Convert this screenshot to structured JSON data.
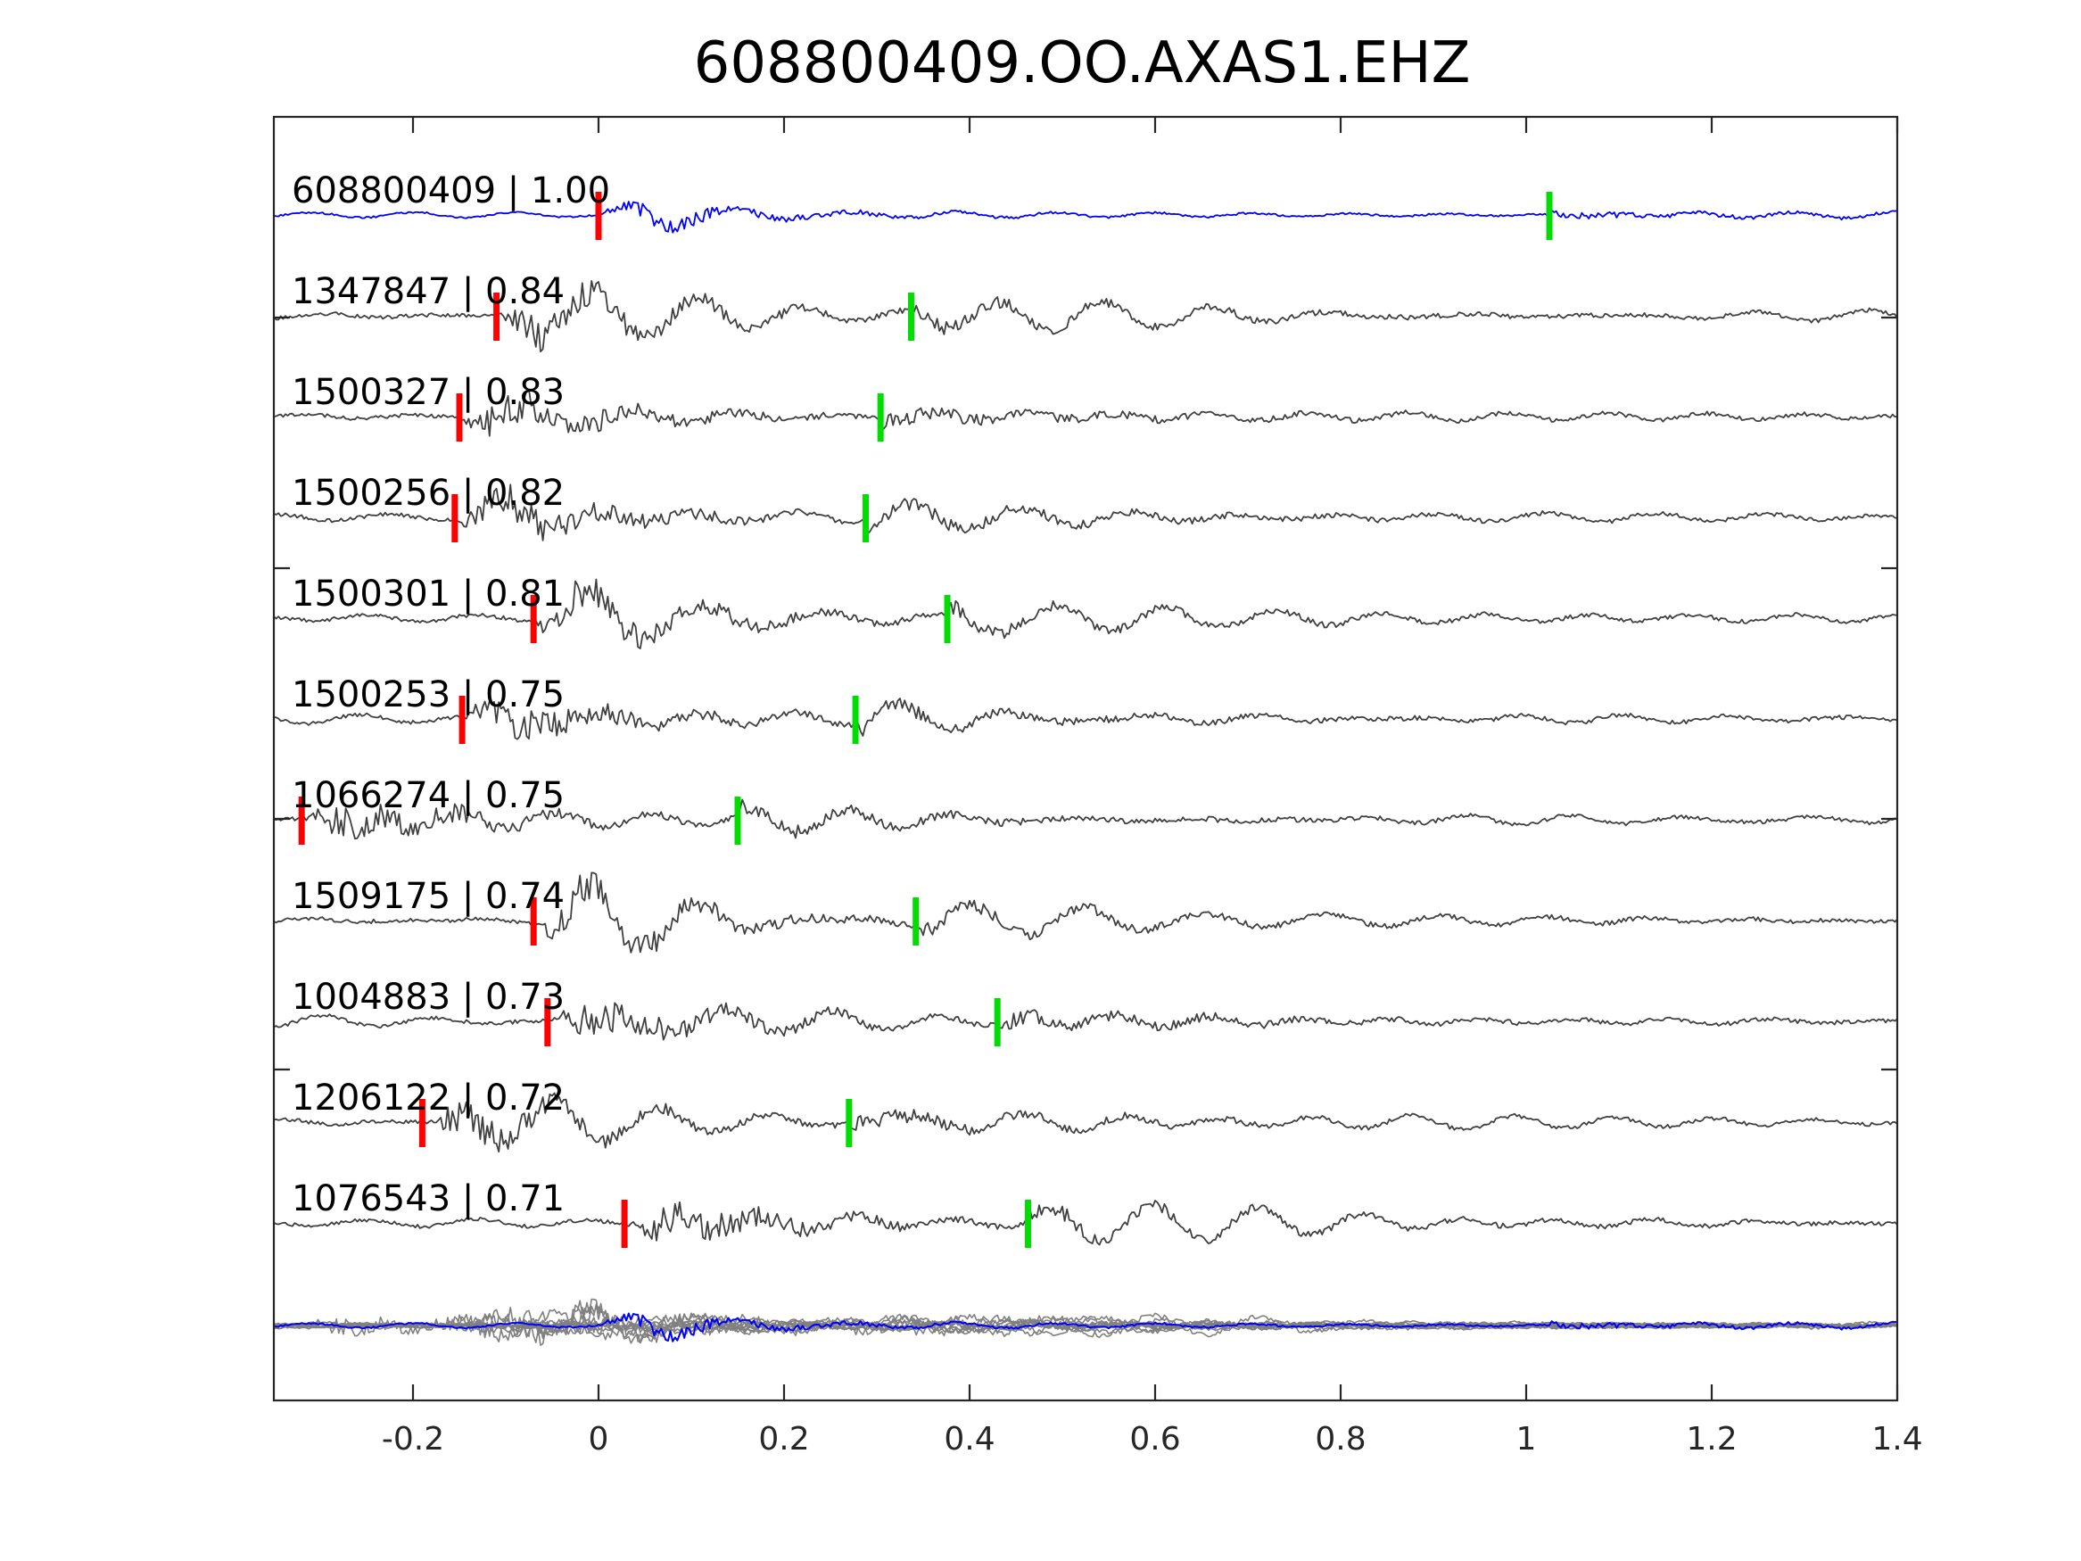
{
  "chart_data": {
    "type": "line",
    "title": "608800409.OO.AXAS1.EHZ",
    "xlabel": "",
    "ylabel": "",
    "xlim": [
      -0.35,
      1.4
    ],
    "xticks": [
      -0.2,
      0,
      0.2,
      0.4,
      0.6,
      0.8,
      1,
      1.2,
      1.4
    ],
    "xtick_labels": [
      "-0.2",
      "0",
      "0.2",
      "0.4",
      "0.6",
      "0.8",
      "1",
      "1.2",
      "1.4"
    ],
    "grid": false,
    "colors": {
      "template": "#0000ff",
      "match": "#404040",
      "stack": "#808080",
      "p_pick": "#ff0000",
      "s_pick": "#00dd00"
    },
    "traces": [
      {
        "event_id": "608800409",
        "correlation": "1.00",
        "label": "608800409 | 1.00",
        "p_pick": 0.0,
        "s_pick": 1.025,
        "color": "template"
      },
      {
        "event_id": "1347847",
        "correlation": "0.84",
        "label": "1347847 | 0.84",
        "p_pick": -0.11,
        "s_pick": 0.337,
        "color": "match"
      },
      {
        "event_id": "1500327",
        "correlation": "0.83",
        "label": "1500327 | 0.83",
        "p_pick": -0.15,
        "s_pick": 0.304,
        "color": "match"
      },
      {
        "event_id": "1500256",
        "correlation": "0.82",
        "label": "1500256 | 0.82",
        "p_pick": -0.155,
        "s_pick": 0.288,
        "color": "match"
      },
      {
        "event_id": "1500301",
        "correlation": "0.81",
        "label": "1500301 | 0.81",
        "p_pick": -0.07,
        "s_pick": 0.376,
        "color": "match"
      },
      {
        "event_id": "1500253",
        "correlation": "0.75",
        "label": "1500253 | 0.75",
        "p_pick": -0.147,
        "s_pick": 0.277,
        "color": "match"
      },
      {
        "event_id": "1066274",
        "correlation": "0.75",
        "label": "1066274 | 0.75",
        "p_pick": -0.32,
        "s_pick": 0.15,
        "color": "match"
      },
      {
        "event_id": "1509175",
        "correlation": "0.74",
        "label": "1509175 | 0.74",
        "p_pick": -0.07,
        "s_pick": 0.342,
        "color": "match"
      },
      {
        "event_id": "1004883",
        "correlation": "0.73",
        "label": "1004883 | 0.73",
        "p_pick": -0.055,
        "s_pick": 0.43,
        "color": "match"
      },
      {
        "event_id": "1206122",
        "correlation": "0.72",
        "label": "1206122 | 0.72",
        "p_pick": -0.19,
        "s_pick": 0.27,
        "color": "match"
      },
      {
        "event_id": "1076543",
        "correlation": "0.71",
        "label": "1076543 | 0.71",
        "p_pick": 0.028,
        "s_pick": 0.463,
        "color": "match"
      }
    ],
    "stack": {
      "color": "stack",
      "overlay_template": true
    }
  }
}
